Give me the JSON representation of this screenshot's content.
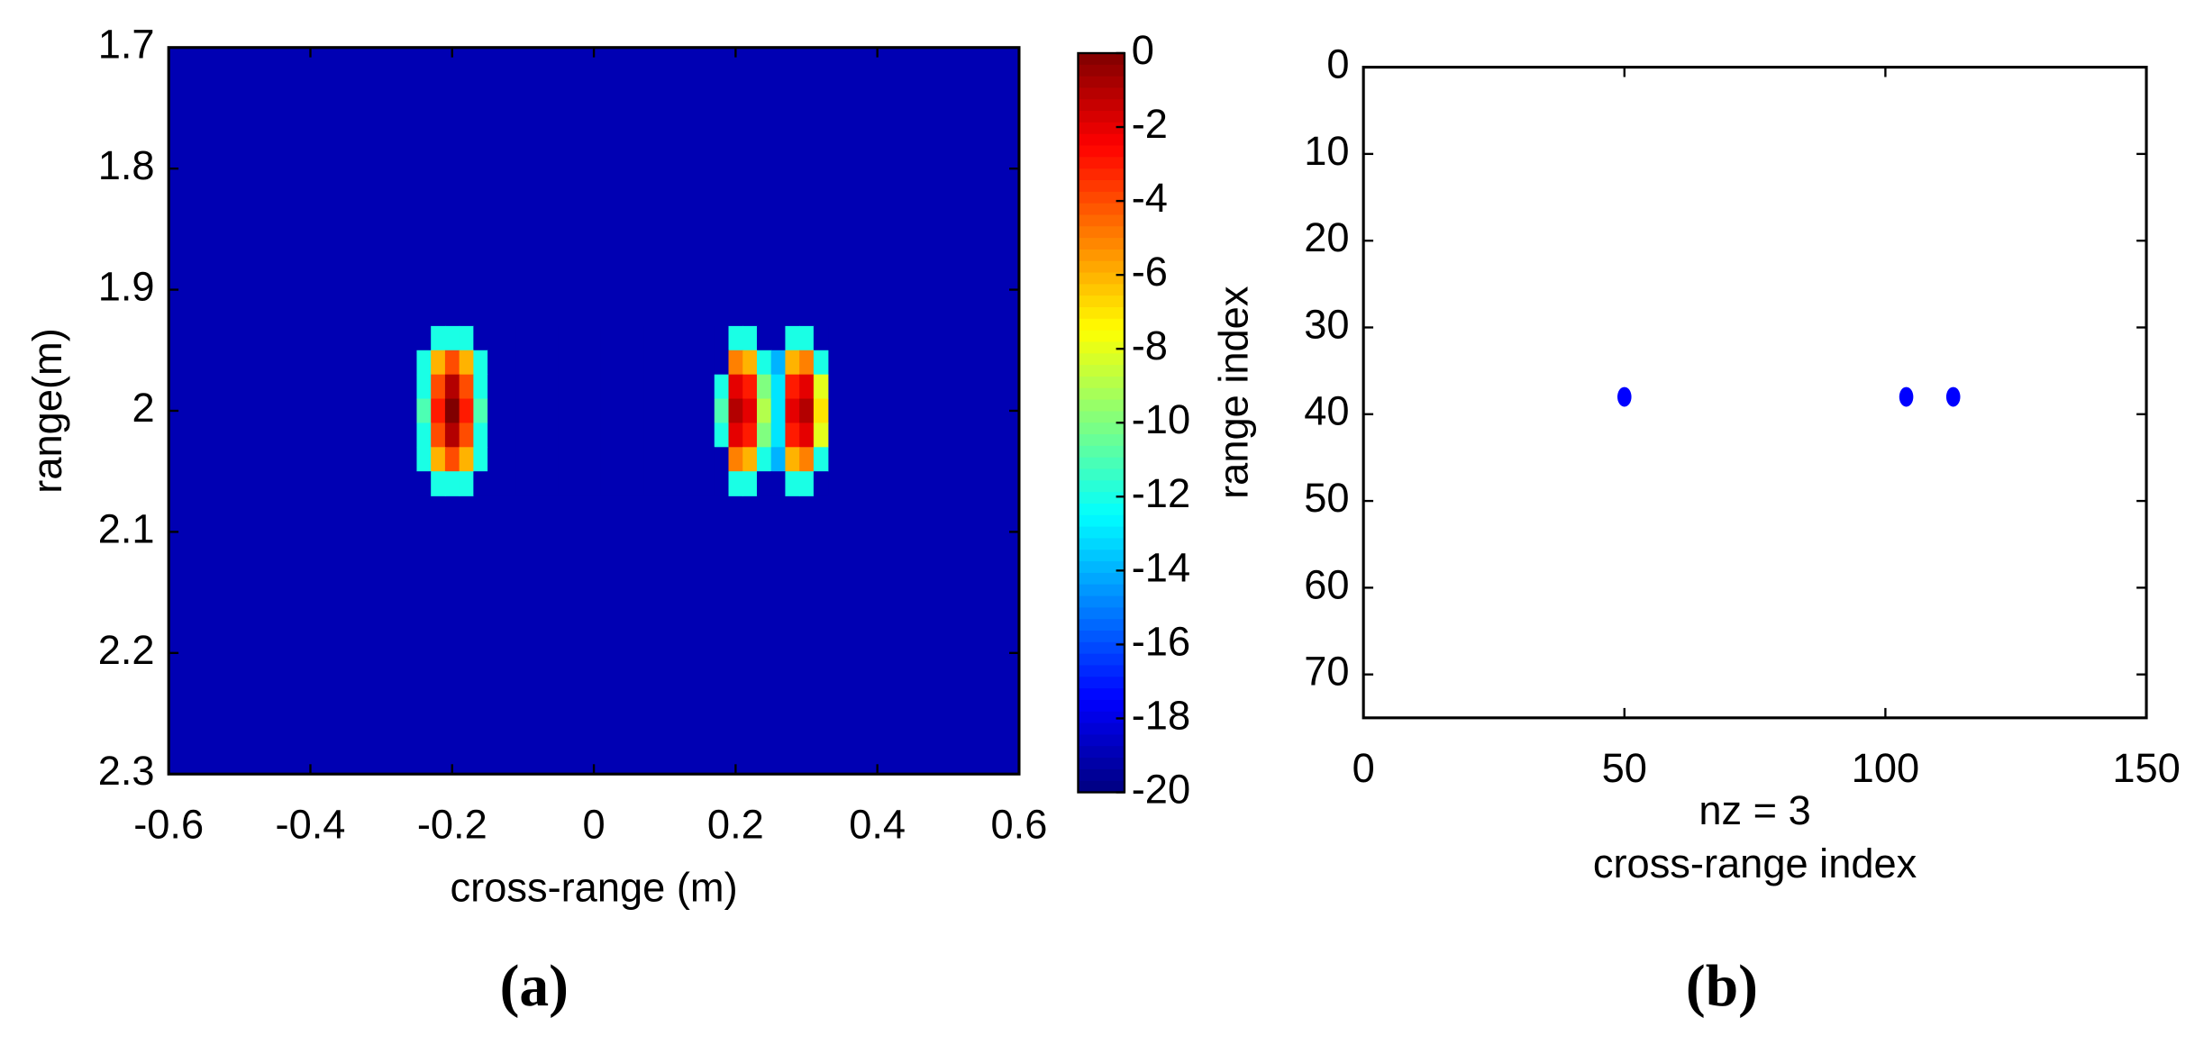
{
  "chart_data": [
    {
      "type": "heatmap",
      "label": "(a)",
      "xlabel": "cross-range (m)",
      "ylabel": "range(m)",
      "xlim": [
        -0.6,
        0.6
      ],
      "ylim": [
        1.7,
        2.3
      ],
      "y_reversed": true,
      "xticks": [
        -0.6,
        -0.4,
        -0.2,
        0,
        0.2,
        0.4,
        0.6
      ],
      "yticks": [
        1.7,
        1.8,
        1.9,
        2,
        2.1,
        2.2,
        2.3
      ],
      "colormap": "jet",
      "zlim": [
        -20,
        0
      ],
      "fill_value": -19,
      "zticks": [
        0,
        -2,
        -4,
        -6,
        -8,
        -10,
        -12,
        -14,
        -16,
        -18,
        -20
      ],
      "x": [
        -0.24,
        -0.22,
        -0.2,
        -0.18,
        -0.16,
        -0.14,
        -0.12,
        -0.1,
        -0.08,
        -0.06,
        -0.04,
        -0.02,
        0,
        0.02,
        0.04,
        0.06,
        0.08,
        0.1,
        0.12,
        0.14,
        0.16,
        0.18,
        0.2,
        0.22,
        0.24,
        0.26,
        0.28,
        0.3,
        0.32
      ],
      "y": [
        1.94,
        1.96,
        1.98,
        2,
        2.02,
        2.04,
        2.06
      ],
      "z": [
        [
          -19,
          -12,
          -12,
          -12,
          -19,
          -19,
          -19,
          -19,
          -19,
          -19,
          -19,
          -19,
          -19,
          -19,
          -19,
          -19,
          -19,
          -19,
          -19,
          -19,
          -19,
          -19,
          -12,
          -12,
          -19,
          -19,
          -12,
          -12,
          -19
        ],
        [
          -12,
          -6,
          -4,
          -6,
          -12,
          -19,
          -19,
          -19,
          -19,
          -19,
          -19,
          -19,
          -19,
          -19,
          -19,
          -19,
          -19,
          -19,
          -19,
          -19,
          -19,
          -19,
          -5,
          -6,
          -12,
          -14,
          -6,
          -5,
          -12
        ],
        [
          -12,
          -4,
          -1,
          -4,
          -12,
          -19,
          -19,
          -19,
          -19,
          -19,
          -19,
          -19,
          -19,
          -19,
          -19,
          -19,
          -19,
          -19,
          -19,
          -19,
          -19,
          -12,
          -2,
          -3,
          -10,
          -13,
          -3,
          -2,
          -8
        ],
        [
          -11,
          -3,
          0,
          -3,
          -11,
          -19,
          -19,
          -19,
          -19,
          -19,
          -19,
          -19,
          -19,
          -19,
          -19,
          -19,
          -19,
          -19,
          -19,
          -19,
          -19,
          -11,
          -1,
          -2,
          -9,
          -13,
          -2,
          -1,
          -7
        ],
        [
          -12,
          -4,
          -1,
          -4,
          -12,
          -19,
          -19,
          -19,
          -19,
          -19,
          -19,
          -19,
          -19,
          -19,
          -19,
          -19,
          -19,
          -19,
          -19,
          -19,
          -19,
          -12,
          -2,
          -3,
          -10,
          -13,
          -3,
          -2,
          -8
        ],
        [
          -12,
          -6,
          -4,
          -6,
          -12,
          -19,
          -19,
          -19,
          -19,
          -19,
          -19,
          -19,
          -19,
          -19,
          -19,
          -19,
          -19,
          -19,
          -19,
          -19,
          -19,
          -19,
          -5,
          -6,
          -12,
          -14,
          -6,
          -5,
          -12
        ],
        [
          -19,
          -12,
          -12,
          -12,
          -19,
          -19,
          -19,
          -19,
          -19,
          -19,
          -19,
          -19,
          -19,
          -19,
          -19,
          -19,
          -19,
          -19,
          -19,
          -19,
          -19,
          -19,
          -12,
          -12,
          -19,
          -19,
          -12,
          -12,
          -19
        ]
      ]
    },
    {
      "type": "scatter",
      "label": "(b)",
      "xlabel": "cross-range index",
      "ylabel": "range index",
      "annotation": "nz = 3",
      "color": "#0000ff",
      "xlim": [
        0,
        150
      ],
      "ylim": [
        0,
        75
      ],
      "y_reversed": true,
      "xticks": [
        0,
        50,
        100,
        150
      ],
      "yticks": [
        0,
        10,
        20,
        30,
        40,
        50,
        60,
        70
      ],
      "x": [
        50,
        104,
        113
      ],
      "values": [
        38,
        38,
        38
      ]
    }
  ]
}
